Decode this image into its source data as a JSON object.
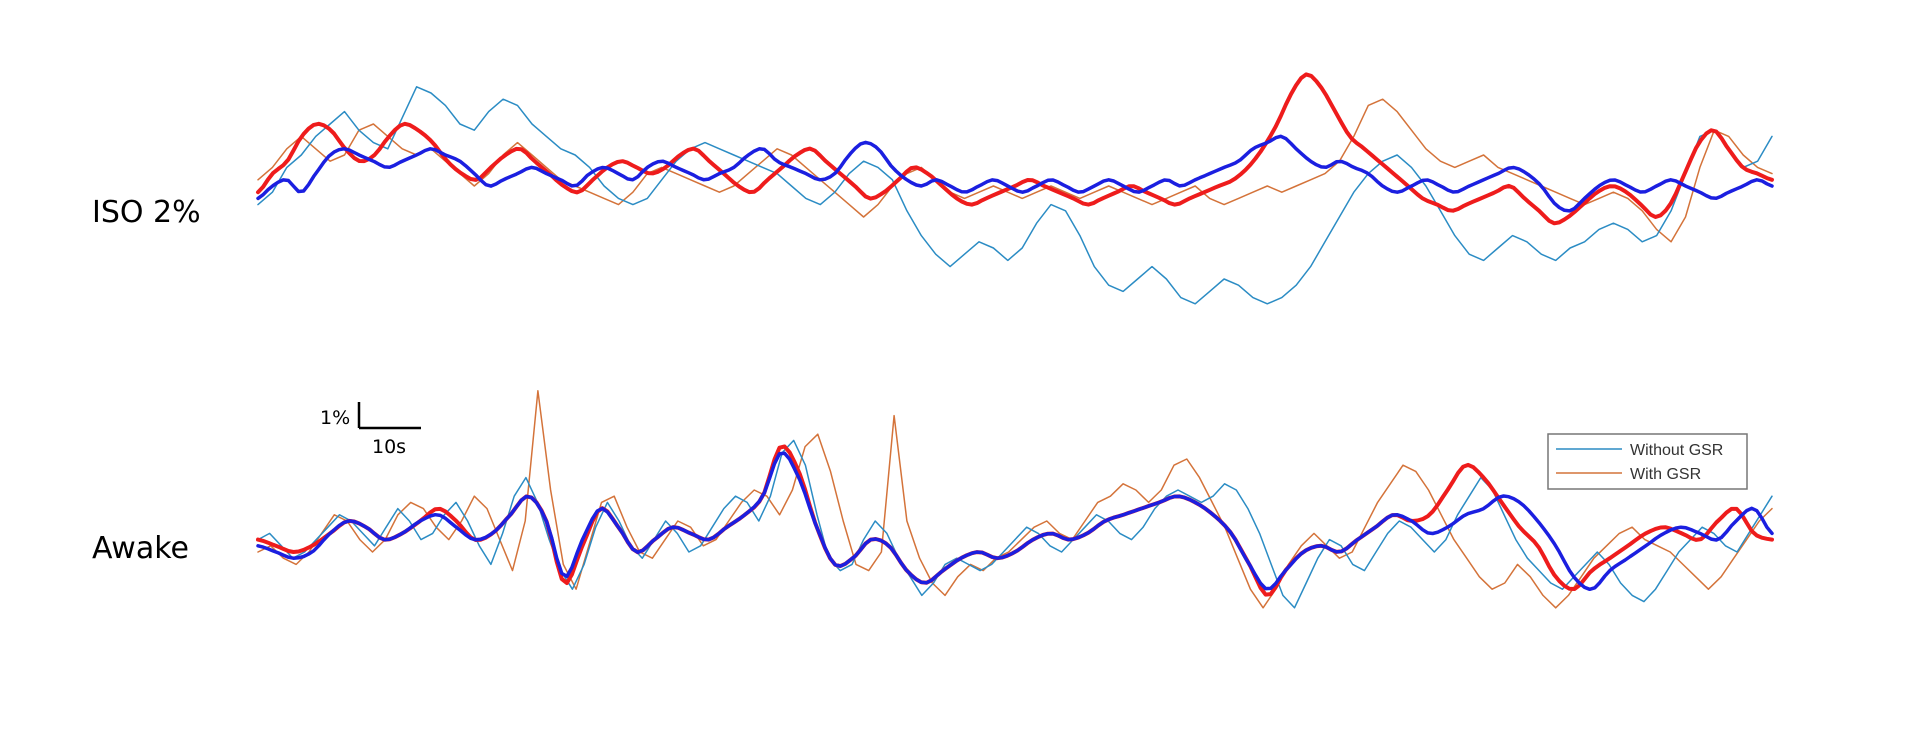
{
  "chart_data": {
    "type": "line",
    "panels": [
      {
        "label": "ISO 2%",
        "series": {
          "without_gsr": [
            -0.3,
            -0.1,
            0.3,
            0.5,
            0.8,
            1.0,
            1.2,
            0.9,
            0.7,
            0.6,
            1.1,
            1.6,
            1.5,
            1.3,
            1.0,
            0.9,
            1.2,
            1.4,
            1.3,
            1.0,
            0.8,
            0.6,
            0.5,
            0.3,
            0.0,
            -0.2,
            -0.3,
            -0.2,
            0.1,
            0.4,
            0.6,
            0.7,
            0.6,
            0.5,
            0.4,
            0.3,
            0.2,
            0.0,
            -0.2,
            -0.3,
            -0.1,
            0.2,
            0.4,
            0.3,
            0.1,
            -0.4,
            -0.8,
            -1.1,
            -1.3,
            -1.1,
            -0.9,
            -1.0,
            -1.2,
            -1.0,
            -0.6,
            -0.3,
            -0.4,
            -0.8,
            -1.3,
            -1.6,
            -1.7,
            -1.5,
            -1.3,
            -1.5,
            -1.8,
            -1.9,
            -1.7,
            -1.5,
            -1.6,
            -1.8,
            -1.9,
            -1.8,
            -1.6,
            -1.3,
            -0.9,
            -0.5,
            -0.1,
            0.2,
            0.4,
            0.5,
            0.3,
            0.0,
            -0.4,
            -0.8,
            -1.1,
            -1.2,
            -1.0,
            -0.8,
            -0.9,
            -1.1,
            -1.2,
            -1.0,
            -0.9,
            -0.7,
            -0.6,
            -0.7,
            -0.9,
            -0.8,
            -0.4,
            0.2,
            0.8,
            0.9,
            0.6,
            0.3,
            0.4,
            0.8
          ],
          "with_gsr": [
            0.1,
            0.3,
            0.6,
            0.8,
            0.6,
            0.4,
            0.5,
            0.9,
            1.0,
            0.8,
            0.6,
            0.5,
            0.6,
            0.4,
            0.2,
            0.0,
            0.2,
            0.5,
            0.7,
            0.5,
            0.3,
            0.1,
            0.0,
            -0.1,
            -0.2,
            -0.3,
            -0.1,
            0.2,
            0.3,
            0.2,
            0.1,
            0.0,
            -0.1,
            0.0,
            0.2,
            0.4,
            0.6,
            0.5,
            0.3,
            0.1,
            -0.1,
            -0.3,
            -0.5,
            -0.3,
            0.0,
            0.2,
            0.3,
            0.1,
            -0.1,
            -0.2,
            -0.1,
            0.0,
            -0.1,
            -0.2,
            -0.1,
            0.0,
            -0.1,
            -0.2,
            -0.1,
            0.0,
            -0.1,
            -0.2,
            -0.3,
            -0.2,
            -0.1,
            0.0,
            -0.2,
            -0.3,
            -0.2,
            -0.1,
            0.0,
            -0.1,
            0.0,
            0.1,
            0.2,
            0.4,
            0.8,
            1.3,
            1.4,
            1.2,
            0.9,
            0.6,
            0.4,
            0.3,
            0.4,
            0.5,
            0.3,
            0.2,
            0.1,
            0.0,
            -0.1,
            -0.2,
            -0.3,
            -0.2,
            -0.1,
            -0.2,
            -0.4,
            -0.7,
            -0.9,
            -0.5,
            0.3,
            0.9,
            0.8,
            0.5,
            0.3,
            0.2
          ],
          "without_gsr_smoothed": [
            -0.2,
            0.0,
            0.1,
            -0.1,
            0.2,
            0.5,
            0.6,
            0.5,
            0.4,
            0.3,
            0.4,
            0.5,
            0.6,
            0.5,
            0.4,
            0.2,
            0.0,
            0.1,
            0.2,
            0.3,
            0.2,
            0.1,
            0.0,
            0.2,
            0.3,
            0.2,
            0.1,
            0.3,
            0.4,
            0.3,
            0.2,
            0.1,
            0.2,
            0.3,
            0.5,
            0.6,
            0.4,
            0.3,
            0.2,
            0.1,
            0.2,
            0.5,
            0.7,
            0.6,
            0.3,
            0.1,
            0.0,
            0.1,
            0.0,
            -0.1,
            0.0,
            0.1,
            0.0,
            -0.1,
            0.0,
            0.1,
            0.0,
            -0.1,
            0.0,
            0.1,
            0.0,
            -0.1,
            0.0,
            0.1,
            0.0,
            0.1,
            0.2,
            0.3,
            0.4,
            0.6,
            0.7,
            0.8,
            0.6,
            0.4,
            0.3,
            0.4,
            0.3,
            0.2,
            0.0,
            -0.1,
            0.0,
            0.1,
            0.0,
            -0.1,
            0.0,
            0.1,
            0.2,
            0.3,
            0.2,
            0.0,
            -0.3,
            -0.4,
            -0.2,
            0.0,
            0.1,
            0.0,
            -0.1,
            0.0,
            0.1,
            0.0,
            -0.1,
            -0.2,
            -0.1,
            0.0,
            0.1,
            0.0
          ],
          "with_gsr_smoothed": [
            -0.1,
            0.2,
            0.4,
            0.8,
            1.0,
            0.9,
            0.6,
            0.4,
            0.5,
            0.8,
            1.0,
            0.9,
            0.7,
            0.4,
            0.2,
            0.1,
            0.3,
            0.5,
            0.6,
            0.4,
            0.2,
            0.0,
            -0.1,
            0.1,
            0.3,
            0.4,
            0.3,
            0.2,
            0.3,
            0.5,
            0.6,
            0.4,
            0.2,
            0.0,
            -0.1,
            0.1,
            0.3,
            0.5,
            0.6,
            0.4,
            0.2,
            0.0,
            -0.2,
            -0.1,
            0.1,
            0.3,
            0.2,
            0.0,
            -0.2,
            -0.3,
            -0.2,
            -0.1,
            0.0,
            0.1,
            0.0,
            -0.1,
            -0.2,
            -0.3,
            -0.2,
            -0.1,
            0.0,
            -0.1,
            -0.2,
            -0.3,
            -0.2,
            -0.1,
            0.0,
            0.1,
            0.3,
            0.6,
            1.0,
            1.5,
            1.8,
            1.6,
            1.2,
            0.8,
            0.6,
            0.4,
            0.2,
            0.0,
            -0.2,
            -0.3,
            -0.4,
            -0.3,
            -0.2,
            -0.1,
            0.0,
            -0.2,
            -0.4,
            -0.6,
            -0.5,
            -0.3,
            -0.1,
            0.0,
            -0.1,
            -0.3,
            -0.5,
            -0.3,
            0.2,
            0.7,
            0.9,
            0.6,
            0.3,
            0.2,
            0.1
          ]
        }
      },
      {
        "label": "Awake",
        "series": {
          "without_gsr": [
            0.2,
            0.3,
            0.1,
            -0.1,
            0.0,
            0.2,
            0.4,
            0.6,
            0.5,
            0.3,
            0.1,
            0.4,
            0.7,
            0.5,
            0.2,
            0.3,
            0.6,
            0.8,
            0.5,
            0.1,
            -0.2,
            0.3,
            0.9,
            1.2,
            0.8,
            0.2,
            -0.3,
            -0.6,
            -0.2,
            0.4,
            0.8,
            0.5,
            0.1,
            -0.1,
            0.2,
            0.5,
            0.3,
            0.0,
            0.1,
            0.4,
            0.7,
            0.9,
            0.8,
            0.5,
            0.9,
            1.6,
            1.8,
            1.4,
            0.6,
            -0.1,
            -0.3,
            -0.2,
            0.2,
            0.5,
            0.3,
            -0.1,
            -0.4,
            -0.7,
            -0.5,
            -0.2,
            -0.1,
            -0.2,
            -0.3,
            -0.2,
            0.0,
            0.2,
            0.4,
            0.3,
            0.1,
            0.0,
            0.2,
            0.4,
            0.6,
            0.5,
            0.3,
            0.2,
            0.4,
            0.7,
            0.9,
            1.0,
            0.9,
            0.8,
            0.9,
            1.1,
            1.0,
            0.7,
            0.3,
            -0.2,
            -0.7,
            -0.9,
            -0.5,
            -0.1,
            0.2,
            0.1,
            -0.2,
            -0.3,
            0.0,
            0.3,
            0.5,
            0.4,
            0.2,
            0.0,
            0.2,
            0.6,
            0.9,
            1.2,
            1.0,
            0.6,
            0.2,
            -0.1,
            -0.3,
            -0.5,
            -0.6,
            -0.4,
            -0.2,
            0.0,
            -0.2,
            -0.5,
            -0.7,
            -0.8,
            -0.6,
            -0.3,
            0.0,
            0.2,
            0.4,
            0.3,
            0.1,
            0.0,
            0.3,
            0.6,
            0.9
          ],
          "with_gsr": [
            0.0,
            0.1,
            -0.1,
            -0.2,
            0.0,
            0.3,
            0.6,
            0.5,
            0.2,
            0.0,
            0.2,
            0.6,
            0.8,
            0.7,
            0.4,
            0.2,
            0.5,
            0.9,
            0.7,
            0.2,
            -0.3,
            0.5,
            2.6,
            1.0,
            -0.2,
            -0.6,
            0.1,
            0.8,
            0.9,
            0.4,
            0.0,
            -0.1,
            0.2,
            0.5,
            0.4,
            0.1,
            0.2,
            0.5,
            0.8,
            1.0,
            0.9,
            0.6,
            1.0,
            1.7,
            1.9,
            1.3,
            0.5,
            -0.2,
            -0.3,
            0.0,
            2.2,
            0.5,
            -0.1,
            -0.5,
            -0.7,
            -0.4,
            -0.2,
            -0.3,
            -0.1,
            0.0,
            0.2,
            0.4,
            0.5,
            0.3,
            0.2,
            0.5,
            0.8,
            0.9,
            1.1,
            1.0,
            0.8,
            1.0,
            1.4,
            1.5,
            1.2,
            0.8,
            0.4,
            -0.1,
            -0.6,
            -0.9,
            -0.6,
            -0.2,
            0.1,
            0.3,
            0.1,
            -0.1,
            0.0,
            0.4,
            0.8,
            1.1,
            1.4,
            1.3,
            1.0,
            0.6,
            0.2,
            -0.1,
            -0.4,
            -0.6,
            -0.5,
            -0.2,
            -0.4,
            -0.7,
            -0.9,
            -0.7,
            -0.4,
            -0.1,
            0.1,
            0.3,
            0.4,
            0.2,
            0.1,
            0.0,
            -0.2,
            -0.4,
            -0.6,
            -0.4,
            -0.1,
            0.2,
            0.5,
            0.7
          ],
          "without_gsr_smoothed": [
            0.1,
            0.0,
            -0.1,
            0.0,
            0.3,
            0.5,
            0.4,
            0.2,
            0.3,
            0.5,
            0.6,
            0.4,
            0.2,
            0.3,
            0.6,
            0.9,
            0.5,
            -0.4,
            0.2,
            0.7,
            0.4,
            0.0,
            0.2,
            0.4,
            0.3,
            0.2,
            0.4,
            0.6,
            0.9,
            1.6,
            1.2,
            0.4,
            -0.2,
            -0.1,
            0.2,
            0.1,
            -0.3,
            -0.5,
            -0.3,
            -0.1,
            0.0,
            -0.1,
            0.0,
            0.2,
            0.3,
            0.2,
            0.3,
            0.5,
            0.6,
            0.7,
            0.8,
            0.9,
            0.8,
            0.6,
            0.3,
            -0.2,
            -0.6,
            -0.3,
            0.0,
            0.1,
            0.0,
            0.2,
            0.4,
            0.6,
            0.5,
            0.3,
            0.4,
            0.6,
            0.7,
            0.9,
            0.8,
            0.5,
            0.1,
            -0.4,
            -0.6,
            -0.3,
            -0.1,
            0.1,
            0.3,
            0.4,
            0.3,
            0.2,
            0.5,
            0.7,
            0.3
          ],
          "with_gsr_smoothed": [
            0.2,
            0.1,
            0.0,
            0.1,
            0.3,
            0.5,
            0.4,
            0.2,
            0.3,
            0.5,
            0.7,
            0.5,
            0.2,
            0.3,
            0.6,
            0.9,
            0.5,
            -0.5,
            0.1,
            0.7,
            0.4,
            0.0,
            0.2,
            0.4,
            0.3,
            0.2,
            0.4,
            0.6,
            0.9,
            1.7,
            1.3,
            0.4,
            -0.2,
            -0.1,
            0.2,
            0.1,
            -0.3,
            -0.5,
            -0.3,
            -0.1,
            0.0,
            -0.1,
            0.0,
            0.2,
            0.3,
            0.2,
            0.3,
            0.5,
            0.6,
            0.7,
            0.8,
            0.9,
            0.8,
            0.6,
            0.3,
            -0.2,
            -0.7,
            -0.3,
            0.0,
            0.1,
            0.0,
            0.2,
            0.4,
            0.6,
            0.5,
            0.6,
            1.0,
            1.4,
            1.2,
            0.8,
            0.4,
            0.1,
            -0.4,
            -0.6,
            -0.3,
            -0.1,
            0.1,
            0.3,
            0.4,
            0.3,
            0.2,
            0.5,
            0.7,
            0.3,
            0.2
          ]
        }
      }
    ],
    "scale_bar": {
      "y_label": "1%",
      "x_label": "10s"
    },
    "legend": [
      "Without GSR",
      "With GSR"
    ],
    "grid": false,
    "legend_position": "right"
  },
  "colors": {
    "without_gsr": "#2b8cc4",
    "with_gsr": "#d4733a",
    "without_gsr_smoothed": "#1b1fe0",
    "with_gsr_smoothed": "#ee1c1c"
  }
}
